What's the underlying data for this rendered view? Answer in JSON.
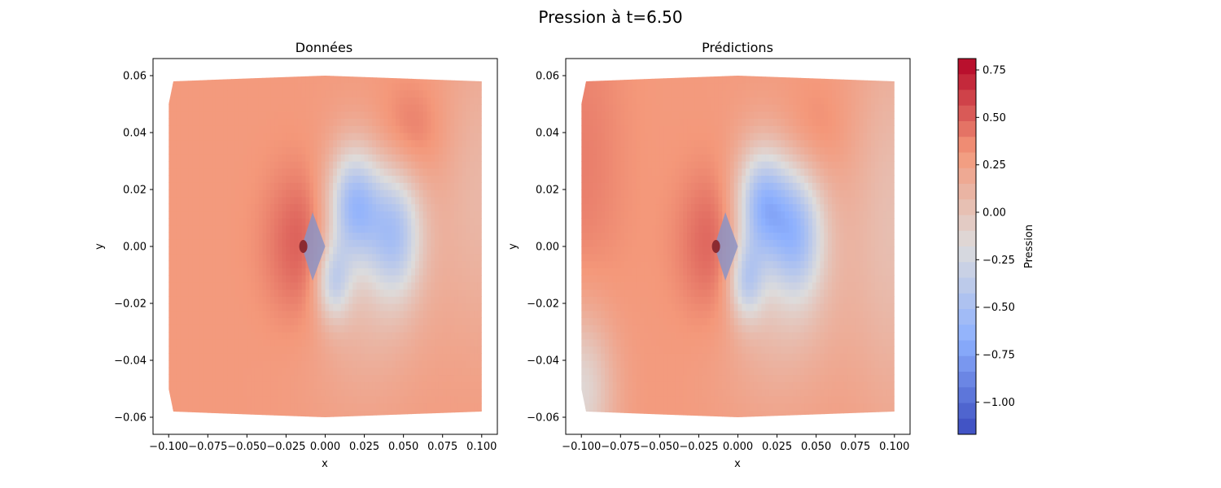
{
  "chart_data": {
    "type": "heatmap",
    "suptitle": "Pression à t=6.50",
    "colormap": "coolwarm",
    "colorbar": {
      "label": "Pression",
      "range": [
        -1.17,
        0.81
      ],
      "ticks": [
        "0.75",
        "0.50",
        "0.25",
        "0.00",
        "−0.25",
        "−0.50",
        "−0.75",
        "−1.00"
      ],
      "tick_values": [
        0.75,
        0.5,
        0.25,
        0.0,
        -0.25,
        -0.5,
        -0.75,
        -1.0
      ]
    },
    "panels": [
      {
        "title": "Données",
        "xlabel": "x",
        "ylabel": "y",
        "xlim": [
          -0.11,
          0.11
        ],
        "ylim": [
          -0.066,
          0.066
        ],
        "xticks": [
          "−0.100",
          "−0.075",
          "−0.050",
          "−0.025",
          "0.000",
          "0.025",
          "0.050",
          "0.075",
          "0.100"
        ],
        "xtick_values": [
          -0.1,
          -0.075,
          -0.05,
          -0.025,
          0.0,
          0.025,
          0.05,
          0.075,
          0.1
        ],
        "yticks": [
          "0.06",
          "0.04",
          "0.02",
          "0.00",
          "−0.02",
          "−0.04",
          "−0.06"
        ],
        "ytick_values": [
          0.06,
          0.04,
          0.02,
          0.0,
          -0.02,
          -0.04,
          -0.06
        ],
        "background_pressure": 0.3,
        "features": [
          {
            "x": -0.012,
            "y": 0.0,
            "sx": 0.018,
            "sy": 0.02,
            "amp": 0.3
          },
          {
            "x": 0.018,
            "y": 0.015,
            "sx": 0.012,
            "sy": 0.014,
            "amp": -0.75
          },
          {
            "x": 0.045,
            "y": 0.005,
            "sx": 0.012,
            "sy": 0.016,
            "amp": -0.6
          },
          {
            "x": 0.005,
            "y": -0.012,
            "sx": 0.008,
            "sy": 0.01,
            "amp": -0.55
          },
          {
            "x": 0.025,
            "y": -0.01,
            "sx": 0.03,
            "sy": 0.03,
            "amp": -0.25
          },
          {
            "x": 0.055,
            "y": 0.04,
            "sx": 0.015,
            "sy": 0.012,
            "amp": 0.15
          },
          {
            "x": 0.1,
            "y": 0.02,
            "sx": 0.02,
            "sy": 0.04,
            "amp": -0.2
          }
        ]
      },
      {
        "title": "Prédictions",
        "xlabel": "x",
        "ylabel": "y",
        "xlim": [
          -0.11,
          0.11
        ],
        "ylim": [
          -0.066,
          0.066
        ],
        "xticks": [
          "−0.100",
          "−0.075",
          "−0.050",
          "−0.025",
          "0.000",
          "0.025",
          "0.050",
          "0.075",
          "0.100"
        ],
        "xtick_values": [
          -0.1,
          -0.075,
          -0.05,
          -0.025,
          0.0,
          0.025,
          0.05,
          0.075,
          0.1
        ],
        "yticks": [
          "0.06",
          "0.04",
          "0.02",
          "0.00",
          "−0.02",
          "−0.04",
          "−0.06"
        ],
        "ytick_values": [
          0.06,
          0.04,
          0.02,
          0.0,
          -0.02,
          -0.04,
          -0.06
        ],
        "background_pressure": 0.3,
        "features": [
          {
            "x": -0.012,
            "y": 0.0,
            "sx": 0.018,
            "sy": 0.02,
            "amp": 0.3
          },
          {
            "x": 0.015,
            "y": 0.015,
            "sx": 0.012,
            "sy": 0.014,
            "amp": -0.75
          },
          {
            "x": 0.038,
            "y": 0.005,
            "sx": 0.012,
            "sy": 0.016,
            "amp": -0.6
          },
          {
            "x": 0.005,
            "y": -0.012,
            "sx": 0.008,
            "sy": 0.01,
            "amp": -0.55
          },
          {
            "x": 0.025,
            "y": -0.01,
            "sx": 0.03,
            "sy": 0.03,
            "amp": -0.3
          },
          {
            "x": 0.05,
            "y": 0.04,
            "sx": 0.015,
            "sy": 0.012,
            "amp": 0.1
          },
          {
            "x": 0.1,
            "y": 0.01,
            "sx": 0.02,
            "sy": 0.05,
            "amp": -0.25
          },
          {
            "x": -0.1,
            "y": -0.05,
            "sx": 0.015,
            "sy": 0.02,
            "amp": -0.45
          },
          {
            "x": -0.1,
            "y": 0.03,
            "sx": 0.02,
            "sy": 0.04,
            "amp": 0.1
          }
        ]
      }
    ]
  }
}
